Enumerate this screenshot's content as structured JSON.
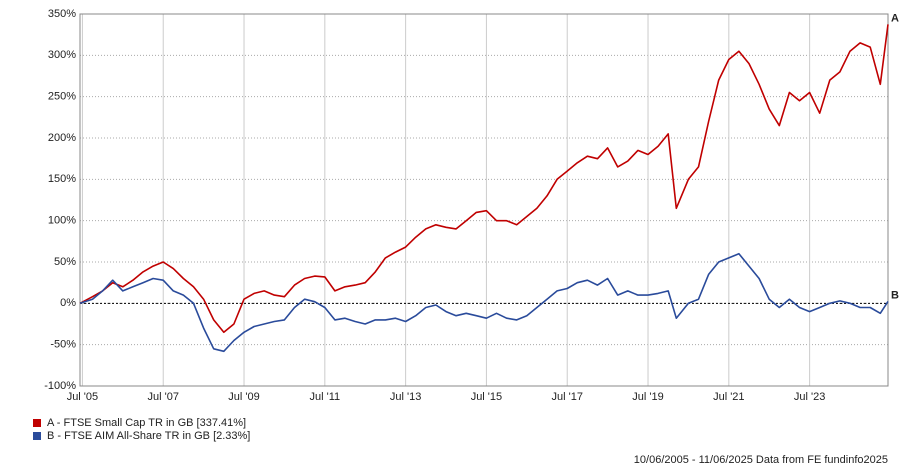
{
  "chart_data": {
    "type": "line",
    "x": [
      2005.44,
      2005.75,
      2006.0,
      2006.25,
      2006.5,
      2006.75,
      2007.0,
      2007.25,
      2007.5,
      2007.75,
      2008.0,
      2008.25,
      2008.5,
      2008.75,
      2009.0,
      2009.25,
      2009.5,
      2009.75,
      2010.0,
      2010.25,
      2010.5,
      2010.75,
      2011.0,
      2011.25,
      2011.5,
      2011.75,
      2012.0,
      2012.25,
      2012.5,
      2012.75,
      2013.0,
      2013.25,
      2013.5,
      2013.75,
      2014.0,
      2014.25,
      2014.5,
      2014.75,
      2015.0,
      2015.25,
      2015.5,
      2015.75,
      2016.0,
      2016.25,
      2016.5,
      2016.75,
      2017.0,
      2017.25,
      2017.5,
      2017.75,
      2018.0,
      2018.25,
      2018.5,
      2018.75,
      2019.0,
      2019.25,
      2019.5,
      2019.75,
      2020.0,
      2020.2,
      2020.5,
      2020.75,
      2021.0,
      2021.25,
      2021.5,
      2021.75,
      2022.0,
      2022.25,
      2022.5,
      2022.75,
      2023.0,
      2023.25,
      2023.5,
      2023.75,
      2024.0,
      2024.25,
      2024.5,
      2024.75,
      2025.0,
      2025.25,
      2025.44
    ],
    "series": [
      {
        "name": "A - FTSE Small Cap TR in GB [337.41%]",
        "end_label": "A",
        "color": "#c00000",
        "values": [
          0,
          8,
          15,
          25,
          20,
          28,
          38,
          45,
          50,
          42,
          30,
          20,
          5,
          -20,
          -35,
          -25,
          5,
          12,
          15,
          10,
          8,
          22,
          30,
          33,
          32,
          15,
          20,
          22,
          25,
          38,
          55,
          62,
          68,
          80,
          90,
          95,
          92,
          90,
          100,
          110,
          112,
          100,
          100,
          95,
          105,
          115,
          130,
          150,
          160,
          170,
          178,
          175,
          188,
          165,
          172,
          185,
          180,
          190,
          205,
          115,
          150,
          165,
          220,
          270,
          295,
          305,
          290,
          265,
          235,
          215,
          255,
          245,
          255,
          230,
          270,
          280,
          305,
          315,
          310,
          265,
          337.41
        ]
      },
      {
        "name": "B - FTSE AIM All-Share TR in GB [2.33%]",
        "end_label": "B",
        "color": "#2a4b9b",
        "values": [
          0,
          5,
          15,
          28,
          15,
          20,
          25,
          30,
          28,
          15,
          10,
          0,
          -30,
          -55,
          -58,
          -45,
          -35,
          -28,
          -25,
          -22,
          -20,
          -5,
          5,
          2,
          -5,
          -20,
          -18,
          -22,
          -25,
          -20,
          -20,
          -18,
          -22,
          -15,
          -5,
          -2,
          -10,
          -15,
          -12,
          -15,
          -18,
          -12,
          -18,
          -20,
          -15,
          -5,
          5,
          15,
          18,
          25,
          28,
          22,
          30,
          10,
          15,
          10,
          10,
          12,
          15,
          -18,
          0,
          5,
          35,
          50,
          55,
          60,
          45,
          30,
          5,
          -5,
          5,
          -5,
          -10,
          -5,
          0,
          3,
          0,
          -5,
          -5,
          -12,
          2.33
        ]
      }
    ],
    "xlim": [
      2005.44,
      2025.44
    ],
    "xticks": [
      {
        "value": 2005.5,
        "label": "Jul '05"
      },
      {
        "value": 2007.5,
        "label": "Jul '07"
      },
      {
        "value": 2009.5,
        "label": "Jul '09"
      },
      {
        "value": 2011.5,
        "label": "Jul '11"
      },
      {
        "value": 2013.5,
        "label": "Jul '13"
      },
      {
        "value": 2015.5,
        "label": "Jul '15"
      },
      {
        "value": 2017.5,
        "label": "Jul '17"
      },
      {
        "value": 2019.5,
        "label": "Jul '19"
      },
      {
        "value": 2021.5,
        "label": "Jul '21"
      },
      {
        "value": 2023.5,
        "label": "Jul '23"
      }
    ],
    "ylim": [
      -100,
      350
    ],
    "yticks": [
      {
        "value": -100,
        "label": "-100%"
      },
      {
        "value": -50,
        "label": "-50%"
      },
      {
        "value": 0,
        "label": "0%"
      },
      {
        "value": 50,
        "label": "50%"
      },
      {
        "value": 100,
        "label": "100%"
      },
      {
        "value": 150,
        "label": "150%"
      },
      {
        "value": 200,
        "label": "200%"
      },
      {
        "value": 250,
        "label": "250%"
      },
      {
        "value": 300,
        "label": "300%"
      },
      {
        "value": 350,
        "label": "350%"
      }
    ],
    "grid": true,
    "footer": "10/06/2005 - 11/06/2025 Data from FE fundinfo2025"
  }
}
